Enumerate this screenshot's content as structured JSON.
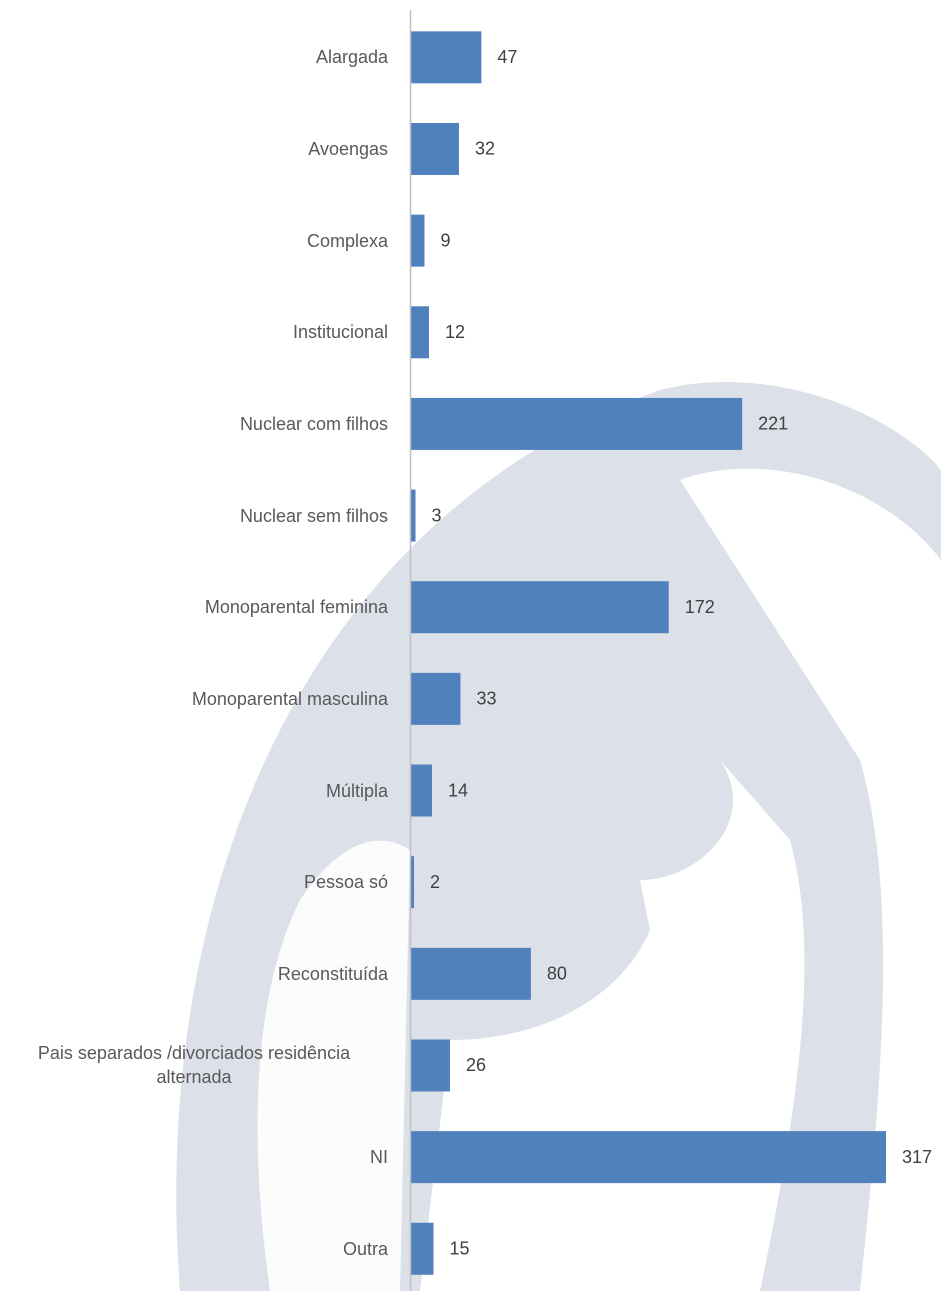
{
  "chart_data": {
    "type": "barh",
    "categories": [
      "Alargada",
      "Avoengas",
      "Complexa",
      "Institucional",
      "Nuclear com filhos",
      "Nuclear sem filhos",
      "Monoparental feminina",
      "Monoparental masculina",
      "Múltipla",
      "Pessoa só",
      "Reconstituída",
      "Pais separados /divorciados residência alternada",
      "NI",
      "Outra"
    ],
    "values": [
      47,
      32,
      9,
      12,
      221,
      3,
      172,
      33,
      14,
      2,
      80,
      26,
      317,
      15
    ],
    "color": "#4f81bd"
  }
}
